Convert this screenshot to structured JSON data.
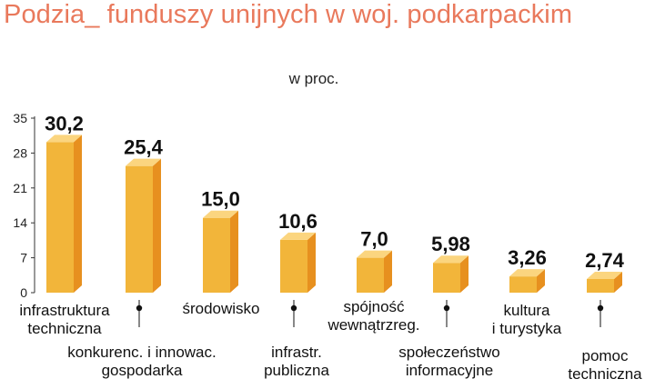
{
  "chart_data": {
    "type": "bar",
    "title": "Podzia_ funduszy unijnych w woj. podkarpackim",
    "subtitle": "w proc.",
    "categories": [
      "infrastruktura\ntechniczna",
      "konkurenc. i innowac.\ngospodarka",
      "środowisko",
      "infrastr.\npubliczna",
      "spójność\nwewnątrzreg.",
      "społeczeństwo\ninformacyjne",
      "kultura\ni turystyka",
      "pomoc\ntechniczna"
    ],
    "values": [
      30.2,
      25.4,
      15.0,
      10.6,
      7.0,
      5.98,
      3.26,
      2.74
    ],
    "value_labels": [
      "30,2",
      "25,4",
      "15,0",
      "10,6",
      "7,0",
      "5,98",
      "3,26",
      "2,74"
    ],
    "y_ticks": [
      "35",
      "28",
      "21",
      "14",
      "7",
      "0"
    ],
    "ylim": [
      0,
      35
    ],
    "grid": false,
    "legend": "none",
    "bar_color": "#f2b53a",
    "bar_side_color": "#e7901f",
    "bar_top_color": "#fbd57f",
    "title_color": "#e9795c"
  }
}
